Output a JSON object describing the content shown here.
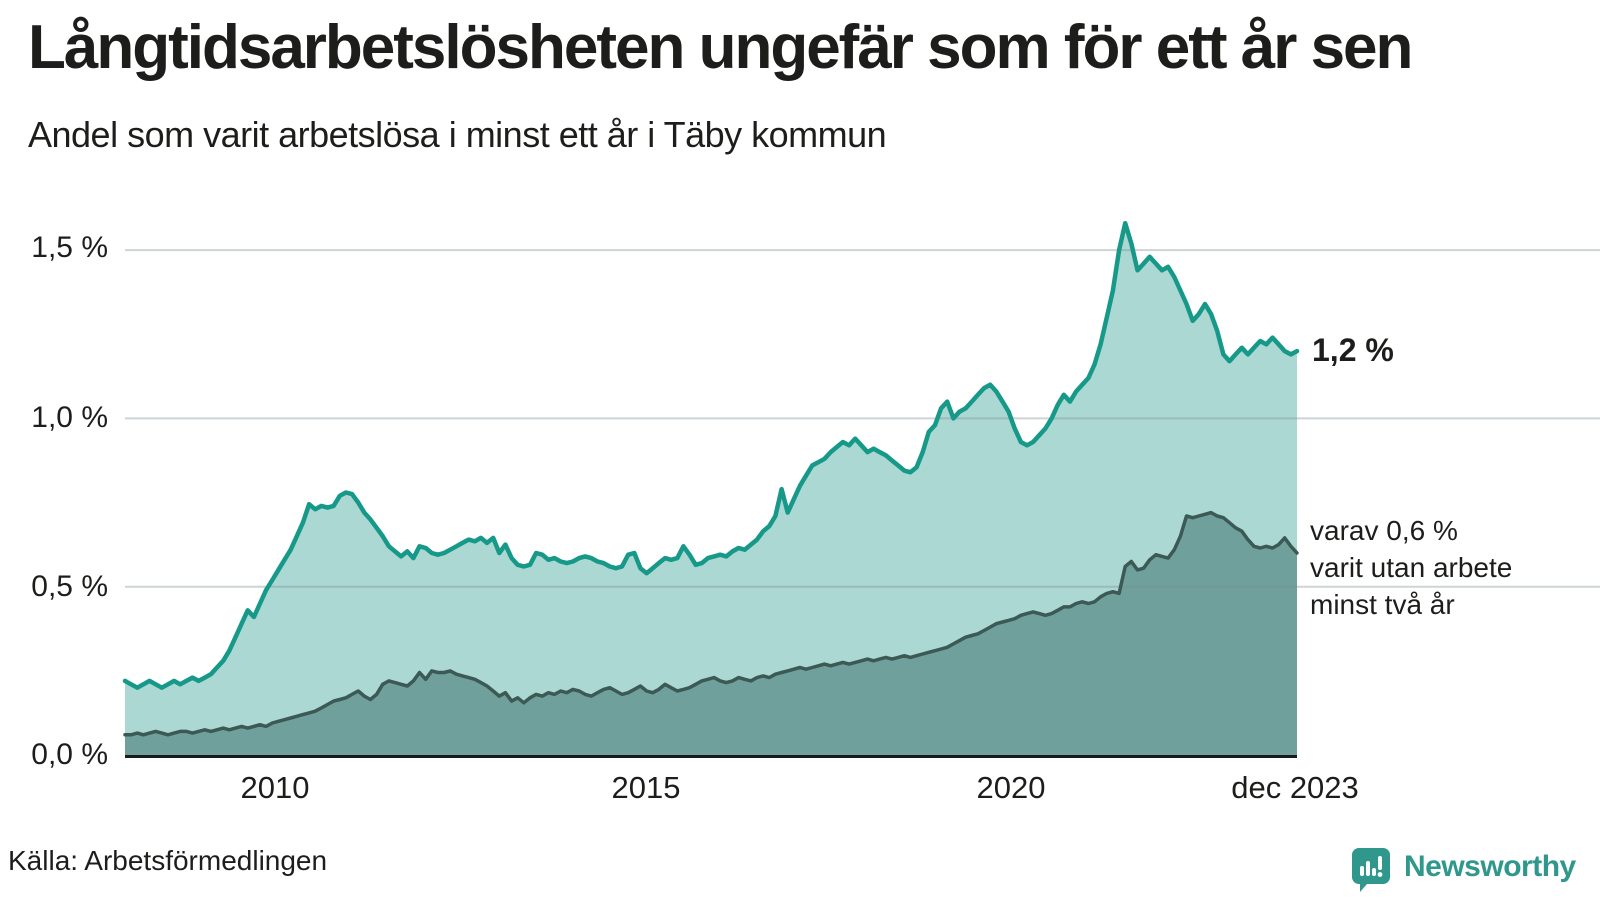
{
  "title": "Långtidsarbetslösheten ungefär som för ett år sen",
  "subtitle": "Andel som varit arbetslösa i minst ett år i Täby kommun",
  "annotations": {
    "latest_value": "1,2 %",
    "secondary_lines": [
      "varav 0,6 %",
      "varit utan arbete",
      "minst två år"
    ]
  },
  "source": "Källa: Arbetsförmedlingen",
  "logo": {
    "text": "Newsworthy",
    "icon": "speech-bubble-bar-chart",
    "color": "#2f978c"
  },
  "y_ticks": [
    "1,5 %",
    "1,0 %",
    "0,5 %",
    "0,0 %"
  ],
  "x_ticks": [
    "2010",
    "2015",
    "2020",
    "dec 2023"
  ],
  "colors": {
    "background": "#ffffff",
    "text": "#1d1d1b",
    "gridline": "#7e8b94",
    "axis_line": "#1a1a1a",
    "series1_line": "#17998a",
    "series1_fill": "#abd8d2",
    "series2_line": "#3c5955",
    "series2_fill": "#6fa09b"
  },
  "chart_data": {
    "type": "area",
    "title": "Långtidsarbetslösheten ungefär som för ett år sen",
    "subtitle": "Andel som varit arbetslösa i minst ett år i Täby kommun",
    "x_unit": "month",
    "x_range": [
      "2008-01",
      "2023-12"
    ],
    "x_tick_labels": [
      "2010",
      "2015",
      "2020",
      "dec 2023"
    ],
    "x_tick_years": [
      2010,
      2015,
      2020,
      2023.92
    ],
    "y_tick_labels": [
      "0,0 %",
      "0,5 %",
      "1,0 %",
      "1,5 %"
    ],
    "y_gridlines": [
      0.5,
      1.0,
      1.5
    ],
    "ylim": [
      0,
      1.65
    ],
    "grid": true,
    "legend_position": "right-annotations",
    "series": [
      {
        "name": "Andel arbetslösa minst ett år",
        "end_label": "1,2 %",
        "line_color": "#17998a",
        "fill_color": "#abd8d2",
        "values": [
          0.22,
          0.21,
          0.2,
          0.21,
          0.22,
          0.21,
          0.2,
          0.21,
          0.22,
          0.21,
          0.22,
          0.23,
          0.22,
          0.23,
          0.24,
          0.26,
          0.28,
          0.31,
          0.35,
          0.39,
          0.43,
          0.41,
          0.45,
          0.49,
          0.52,
          0.55,
          0.58,
          0.61,
          0.65,
          0.69,
          0.745,
          0.73,
          0.74,
          0.735,
          0.74,
          0.77,
          0.78,
          0.775,
          0.75,
          0.72,
          0.7,
          0.675,
          0.65,
          0.62,
          0.605,
          0.59,
          0.605,
          0.585,
          0.62,
          0.615,
          0.6,
          0.595,
          0.6,
          0.61,
          0.62,
          0.63,
          0.64,
          0.635,
          0.645,
          0.63,
          0.645,
          0.6,
          0.625,
          0.585,
          0.565,
          0.56,
          0.565,
          0.6,
          0.595,
          0.58,
          0.585,
          0.575,
          0.57,
          0.575,
          0.585,
          0.59,
          0.585,
          0.575,
          0.57,
          0.56,
          0.555,
          0.56,
          0.595,
          0.6,
          0.555,
          0.54,
          0.555,
          0.57,
          0.585,
          0.58,
          0.585,
          0.62,
          0.595,
          0.565,
          0.57,
          0.585,
          0.59,
          0.595,
          0.59,
          0.605,
          0.615,
          0.61,
          0.625,
          0.64,
          0.665,
          0.68,
          0.71,
          0.79,
          0.72,
          0.76,
          0.8,
          0.83,
          0.86,
          0.87,
          0.88,
          0.9,
          0.915,
          0.93,
          0.92,
          0.94,
          0.92,
          0.9,
          0.91,
          0.9,
          0.89,
          0.875,
          0.86,
          0.845,
          0.84,
          0.855,
          0.9,
          0.96,
          0.98,
          1.03,
          1.05,
          1.0,
          1.02,
          1.03,
          1.05,
          1.07,
          1.09,
          1.1,
          1.08,
          1.05,
          1.02,
          0.97,
          0.93,
          0.92,
          0.93,
          0.95,
          0.97,
          1.0,
          1.04,
          1.07,
          1.05,
          1.08,
          1.1,
          1.12,
          1.16,
          1.22,
          1.3,
          1.38,
          1.5,
          1.58,
          1.52,
          1.44,
          1.46,
          1.48,
          1.46,
          1.44,
          1.45,
          1.42,
          1.38,
          1.34,
          1.29,
          1.31,
          1.34,
          1.31,
          1.26,
          1.19,
          1.17,
          1.19,
          1.21,
          1.19,
          1.21,
          1.23,
          1.22,
          1.24,
          1.22,
          1.2,
          1.19,
          1.2
        ]
      },
      {
        "name": "varav utan arbete minst två år",
        "end_label": "0,6 %",
        "line_color": "#3c5955",
        "fill_color": "#6fa09b",
        "values": [
          0.06,
          0.06,
          0.065,
          0.06,
          0.065,
          0.07,
          0.065,
          0.06,
          0.065,
          0.07,
          0.07,
          0.065,
          0.07,
          0.075,
          0.07,
          0.075,
          0.08,
          0.075,
          0.08,
          0.085,
          0.08,
          0.085,
          0.09,
          0.085,
          0.095,
          0.1,
          0.105,
          0.11,
          0.115,
          0.12,
          0.125,
          0.13,
          0.14,
          0.15,
          0.16,
          0.165,
          0.17,
          0.18,
          0.19,
          0.175,
          0.165,
          0.18,
          0.21,
          0.22,
          0.215,
          0.21,
          0.205,
          0.22,
          0.245,
          0.225,
          0.25,
          0.245,
          0.245,
          0.25,
          0.24,
          0.235,
          0.23,
          0.225,
          0.215,
          0.205,
          0.19,
          0.175,
          0.185,
          0.16,
          0.17,
          0.155,
          0.17,
          0.18,
          0.175,
          0.185,
          0.18,
          0.19,
          0.185,
          0.195,
          0.19,
          0.18,
          0.175,
          0.185,
          0.195,
          0.2,
          0.19,
          0.18,
          0.185,
          0.195,
          0.205,
          0.19,
          0.185,
          0.195,
          0.21,
          0.2,
          0.19,
          0.195,
          0.2,
          0.21,
          0.22,
          0.225,
          0.23,
          0.22,
          0.215,
          0.22,
          0.23,
          0.225,
          0.22,
          0.23,
          0.235,
          0.23,
          0.24,
          0.245,
          0.25,
          0.255,
          0.26,
          0.255,
          0.26,
          0.265,
          0.27,
          0.265,
          0.27,
          0.275,
          0.27,
          0.275,
          0.28,
          0.285,
          0.28,
          0.285,
          0.29,
          0.285,
          0.29,
          0.295,
          0.29,
          0.295,
          0.3,
          0.305,
          0.31,
          0.315,
          0.32,
          0.33,
          0.34,
          0.35,
          0.355,
          0.36,
          0.37,
          0.38,
          0.39,
          0.395,
          0.4,
          0.405,
          0.415,
          0.42,
          0.425,
          0.42,
          0.415,
          0.42,
          0.43,
          0.44,
          0.44,
          0.45,
          0.455,
          0.45,
          0.455,
          0.47,
          0.48,
          0.485,
          0.48,
          0.56,
          0.575,
          0.55,
          0.555,
          0.58,
          0.595,
          0.59,
          0.585,
          0.61,
          0.65,
          0.71,
          0.705,
          0.71,
          0.715,
          0.72,
          0.71,
          0.705,
          0.69,
          0.675,
          0.665,
          0.64,
          0.62,
          0.615,
          0.62,
          0.615,
          0.625,
          0.645,
          0.62,
          0.6
        ]
      }
    ]
  }
}
